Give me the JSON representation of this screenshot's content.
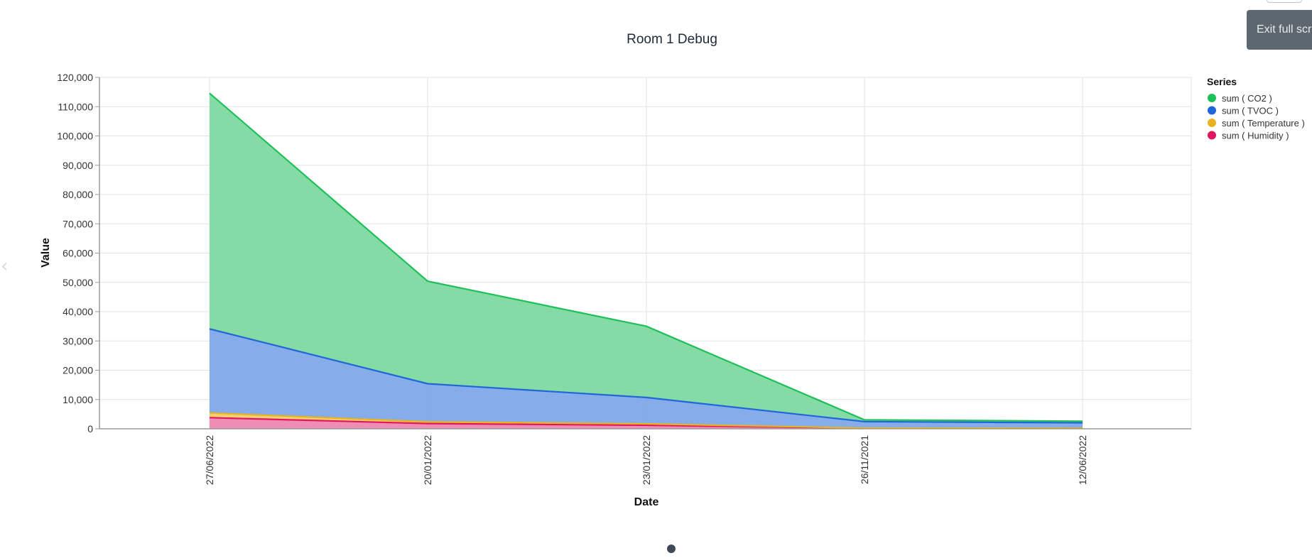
{
  "exit_fullscreen_label": "Exit full screen",
  "chart_data": {
    "type": "area",
    "stacked": true,
    "title": "Room 1 Debug",
    "xlabel": "Date",
    "ylabel": "Value",
    "ylim": [
      0,
      120000
    ],
    "yticks": [
      0,
      10000,
      20000,
      30000,
      40000,
      50000,
      60000,
      70000,
      80000,
      90000,
      100000,
      110000,
      120000
    ],
    "ytick_labels": [
      "0",
      "10,000",
      "20,000",
      "30,000",
      "40,000",
      "50,000",
      "60,000",
      "70,000",
      "80,000",
      "90,000",
      "100,000",
      "110,000",
      "120,000"
    ],
    "categories": [
      "27/06/2022",
      "20/01/2022",
      "23/01/2022",
      "26/11/2021",
      "12/06/2022"
    ],
    "grid": true,
    "legend": {
      "title": "Series",
      "placement": "right"
    },
    "series": [
      {
        "name": "sum ( CO2 )",
        "color": "#1fbf5a",
        "fill": "#7ed9a0",
        "values": [
          80500,
          35000,
          24300,
          600,
          550
        ]
      },
      {
        "name": "sum ( TVOC )",
        "color": "#1f66d9",
        "fill": "#7fa8e8",
        "values": [
          28700,
          13000,
          9000,
          2200,
          1850
        ]
      },
      {
        "name": "sum ( Temperature )",
        "color": "#e8b320",
        "fill": "#f2cf6a",
        "values": [
          1600,
          600,
          500,
          50,
          50
        ]
      },
      {
        "name": "sum ( Humidity )",
        "color": "#e0175f",
        "fill": "#ee88b0",
        "values": [
          3800,
          1800,
          1200,
          200,
          150
        ]
      }
    ]
  }
}
